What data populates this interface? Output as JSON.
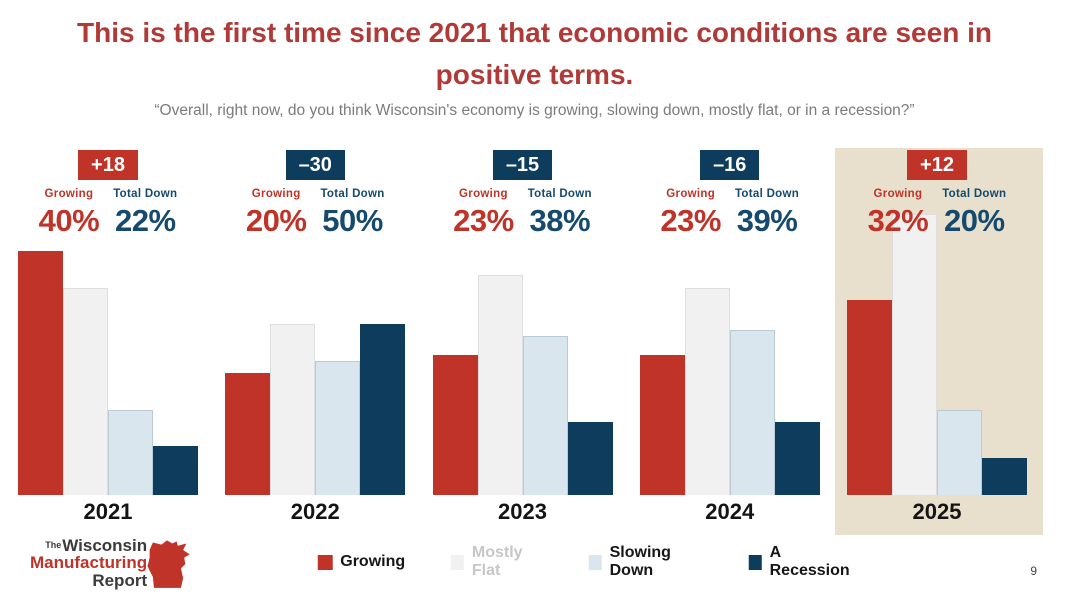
{
  "slide": {
    "title_line1": "This is the first time since 2021 that economic conditions are seen in",
    "title_line2": "positive terms.",
    "subtitle": "“Overall, right now, do you think Wisconsin's economy is growing, slowing down, mostly flat, or in a recession?”",
    "page_number": "9"
  },
  "stat_labels": {
    "growing": "Growing",
    "total_down": "Total Down"
  },
  "legend": {
    "items": [
      {
        "label": "Growing",
        "swatch": "red",
        "muted": false
      },
      {
        "label": "Mostly Flat",
        "swatch": "light_gray",
        "muted": true
      },
      {
        "label": "Slowing Down",
        "swatch": "light_blue",
        "muted": false
      },
      {
        "label": "A Recession",
        "swatch": "navy",
        "muted": false
      }
    ]
  },
  "logo": {
    "the": "The",
    "line1": "Wisconsin",
    "line2": "Manufacturing",
    "line3": "Report"
  },
  "colors": {
    "red": "#bf3328",
    "navy": "#0d3c5c",
    "light_gray": "#f1f1f1",
    "light_blue": "#d9e6ee",
    "beige": "#e8e0cd",
    "title_red": "#b03a38",
    "label_navy": "#15496d",
    "muted_text": "#c7c7c7",
    "subtitle_gray": "#7b7b7b"
  },
  "chart_data": {
    "type": "bar",
    "categories": [
      "2021",
      "2022",
      "2023",
      "2024",
      "2025"
    ],
    "series": [
      {
        "name": "Growing",
        "values": [
          40,
          20,
          23,
          23,
          32
        ]
      },
      {
        "name": "Mostly Flat",
        "values": [
          34,
          28,
          36,
          34,
          46
        ]
      },
      {
        "name": "Slowing Down",
        "values": [
          14,
          22,
          26,
          27,
          14
        ]
      },
      {
        "name": "A Recession",
        "values": [
          8,
          28,
          12,
          12,
          6
        ]
      }
    ],
    "net_badges": [
      {
        "year": "2021",
        "value": "+18",
        "color": "red"
      },
      {
        "year": "2022",
        "value": "–30",
        "color": "navy"
      },
      {
        "year": "2023",
        "value": "–15",
        "color": "navy"
      },
      {
        "year": "2024",
        "value": "–16",
        "color": "navy"
      },
      {
        "year": "2025",
        "value": "+12",
        "color": "red"
      }
    ],
    "summary_stats": [
      {
        "year": "2021",
        "growing": "40%",
        "total_down": "22%"
      },
      {
        "year": "2022",
        "growing": "20%",
        "total_down": "50%"
      },
      {
        "year": "2023",
        "growing": "23%",
        "total_down": "38%"
      },
      {
        "year": "2024",
        "growing": "23%",
        "total_down": "39%"
      },
      {
        "year": "2025",
        "growing": "32%",
        "total_down": "20%"
      }
    ],
    "highlight_year": "2025",
    "ylim": [
      0,
      50
    ],
    "grid": false,
    "legend_position": "bottom"
  }
}
